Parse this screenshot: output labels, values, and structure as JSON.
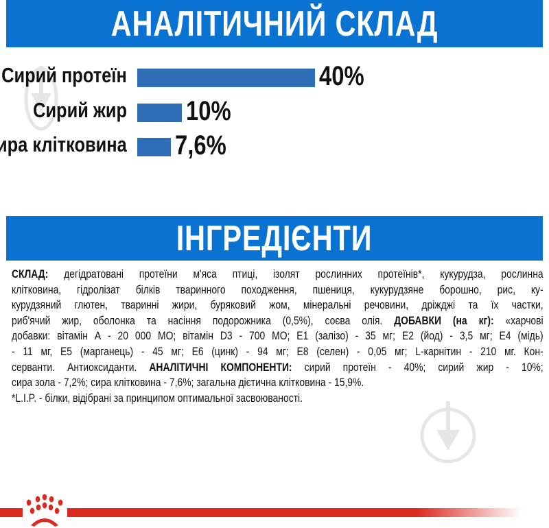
{
  "header_analysis": "АНАЛІТИЧНИЙ СКЛАД",
  "header_ingredients": "ІНГРЕДІЄНТИ",
  "chart_data": {
    "type": "bar",
    "orientation": "horizontal",
    "categories": [
      "Сирий протеїн",
      "Сирий жир",
      "Сира клітковина"
    ],
    "values": [
      40,
      10,
      7.6
    ],
    "value_labels": [
      "40%",
      "10%",
      "7,6%"
    ],
    "unit": "%",
    "grid": false,
    "bar_color": "#2f6db6"
  },
  "ingredients_lines": [
    [
      {
        "t": "СКЛАД:",
        "b": true
      },
      {
        "t": " дегідратовані протеїни м'яса птиці, ізолят рослинних протеїнів*, кукурудза, рослинна"
      }
    ],
    [
      {
        "t": "клітковина, гідролізат білків тваринного походження, пшениця, кукурудзяне борошно, рис, ку-"
      }
    ],
    [
      {
        "t": "курудзяний глютен, тваринні жири, буряковий жом, мінеральні речовини, дріжджі та їх частки,"
      }
    ],
    [
      {
        "t": "риб'ячий жир, оболонка та насіння подорожника (0,5%), соєва олія.  "
      },
      {
        "t": "ДОБАВКИ (на кг):",
        "b": true
      },
      {
        "t": " «харчові"
      }
    ],
    [
      {
        "t": "добавки: вітамін А -  20 000 МО; вітамін D3 - 700 МО; Е1 (залізо) - 35 мг; Е2 (йод) - 3,5 мг; Е4 (мідь)"
      }
    ],
    [
      {
        "t": "- 11 мг, Е5 (марганець) - 45 мг; Е6 (цинк) - 94 мг; Е8 (селен) - 0,05 мг; L-карнітин - 210 мг. Кон-"
      }
    ],
    [
      {
        "t": "серванти. Антиоксиданти. "
      },
      {
        "t": "АНАЛІТИЧНІ КОМПОНЕНТИ:",
        "b": true
      },
      {
        "t": " сирий протеїн - 40%; сирий жир - 10%;"
      }
    ],
    [
      {
        "t": "сира зола - 7,2%; сира клітковина - 7,6%; загальна дієтична клітковина - 15,9%."
      }
    ],
    [
      {
        "t": "*L.I.P. - білки, відібрані за принципом оптимальної засвоюваності."
      }
    ]
  ],
  "colors": {
    "header_blue": "#0a72d0",
    "brand_red": "#dc2a20"
  },
  "icons": [
    "watermark-download-icon",
    "royal-canin-crown-logo"
  ]
}
